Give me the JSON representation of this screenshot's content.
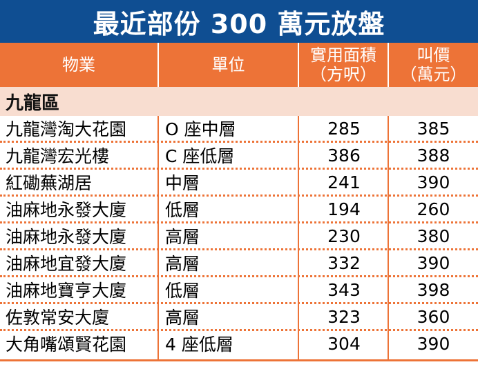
{
  "title": "最近部份 300 萬元放盤",
  "headers": {
    "property": "物業",
    "unit": "單位",
    "area": [
      "實用面積",
      "（方呎）"
    ],
    "price": [
      "叫價",
      "（萬元）"
    ]
  },
  "region": "九龍區",
  "rows": [
    {
      "property": "九龍灣淘大花園",
      "unit": "O 座中層",
      "area": "285",
      "price": "385"
    },
    {
      "property": "九龍灣宏光樓",
      "unit": "C 座低層",
      "area": "386",
      "price": "388"
    },
    {
      "property": "紅磡蕪湖居",
      "unit": "中層",
      "area": "241",
      "price": "390"
    },
    {
      "property": "油麻地永發大廈",
      "unit": "低層",
      "area": "194",
      "price": "260"
    },
    {
      "property": "油麻地永發大廈",
      "unit": "高層",
      "area": "230",
      "price": "380"
    },
    {
      "property": "油麻地宜發大廈",
      "unit": "高層",
      "area": "332",
      "price": "390"
    },
    {
      "property": "油麻地寶亨大廈",
      "unit": "低層",
      "area": "343",
      "price": "398"
    },
    {
      "property": "佐敦常安大廈",
      "unit": "高層",
      "area": "323",
      "price": "360"
    },
    {
      "property": "大角嘴頌賢花園",
      "unit": "4 座低層",
      "area": "304",
      "price": "390"
    }
  ],
  "colors": {
    "title_bg": "#0f4e92",
    "header_bg": "#ed7337",
    "region_bg": "#f8ddd0",
    "rule": "#ed7337"
  }
}
